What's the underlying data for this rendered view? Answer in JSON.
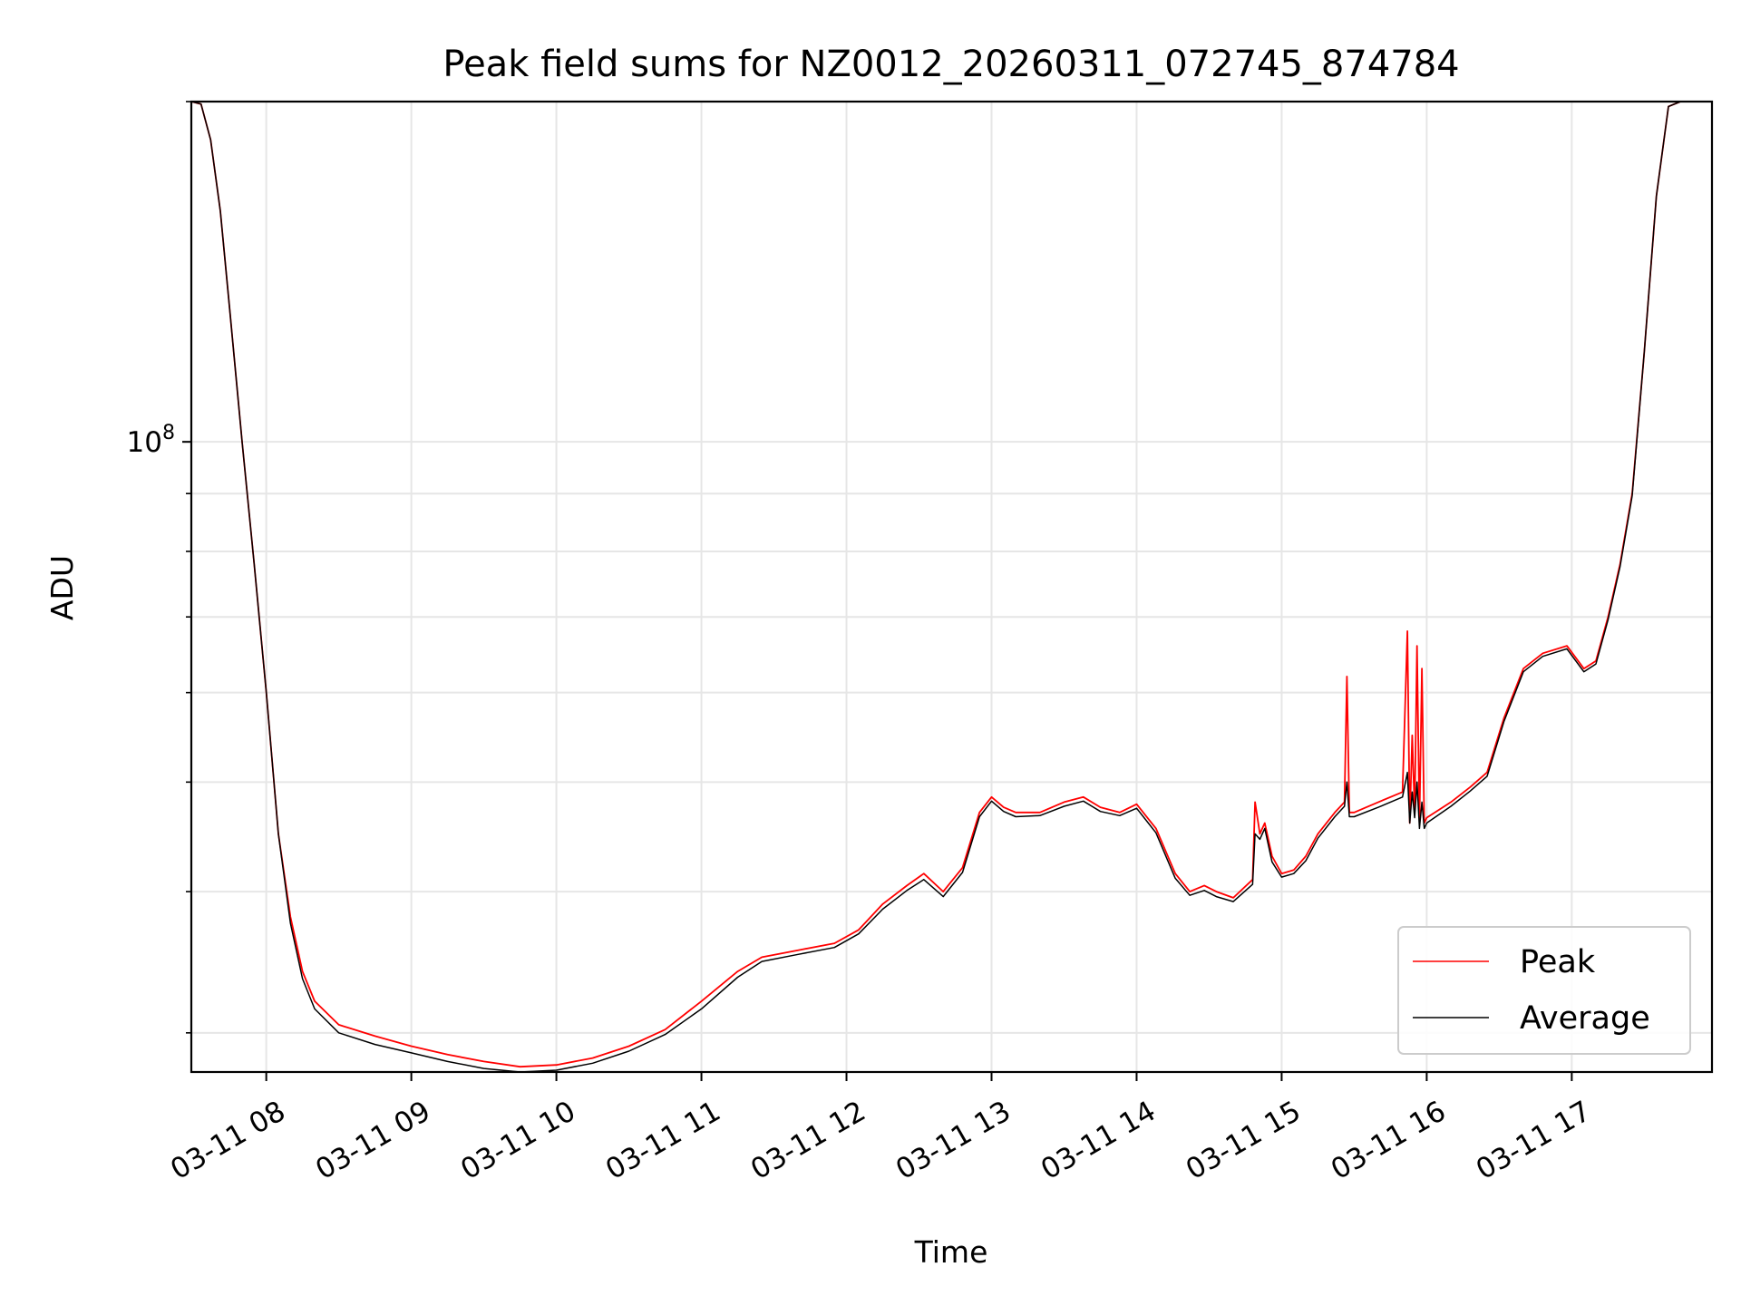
{
  "chart_data": {
    "type": "line",
    "title": "Peak field sums for NZ0012_20260311_072745_874784",
    "xlabel": "Time",
    "ylabel": "ADU",
    "y_scale": "log",
    "ylim": [
      27700000,
      200000000
    ],
    "xlim": [
      "2026-03-11 07:29",
      "2026-03-11 17:58"
    ],
    "x_tick_labels": [
      "03-11 08",
      "03-11 09",
      "03-11 10",
      "03-11 11",
      "03-11 12",
      "03-11 13",
      "03-11 14",
      "03-11 15",
      "03-11 16",
      "03-11 17"
    ],
    "x_ticks": [
      "2026-03-11 08:00",
      "2026-03-11 09:00",
      "2026-03-11 10:00",
      "2026-03-11 11:00",
      "2026-03-11 12:00",
      "2026-03-11 13:00",
      "2026-03-11 14:00",
      "2026-03-11 15:00",
      "2026-03-11 16:00",
      "2026-03-11 17:00"
    ],
    "y_tick_labels": [
      {
        "base": "10",
        "exp": "8"
      }
    ],
    "y_ticks": [
      100000000
    ],
    "y_minor_ticks": [
      30000000,
      40000000,
      50000000,
      60000000,
      70000000,
      80000000,
      90000000,
      200000000
    ],
    "grid": true,
    "legend_position": "lower right",
    "series": [
      {
        "name": "Peak",
        "color": "#ff0000",
        "x": [
          "2026-03-11 07:29",
          "2026-03-11 07:33",
          "2026-03-11 07:37",
          "2026-03-11 07:41",
          "2026-03-11 07:45",
          "2026-03-11 07:50",
          "2026-03-11 07:55",
          "2026-03-11 08:00",
          "2026-03-11 08:05",
          "2026-03-11 08:10",
          "2026-03-11 08:15",
          "2026-03-11 08:20",
          "2026-03-11 08:30",
          "2026-03-11 08:45",
          "2026-03-11 09:00",
          "2026-03-11 09:15",
          "2026-03-11 09:30",
          "2026-03-11 09:45",
          "2026-03-11 10:00",
          "2026-03-11 10:15",
          "2026-03-11 10:30",
          "2026-03-11 10:45",
          "2026-03-11 11:00",
          "2026-03-11 11:15",
          "2026-03-11 11:25",
          "2026-03-11 11:40",
          "2026-03-11 11:55",
          "2026-03-11 12:05",
          "2026-03-11 12:15",
          "2026-03-11 12:25",
          "2026-03-11 12:32",
          "2026-03-11 12:40",
          "2026-03-11 12:48",
          "2026-03-11 12:55",
          "2026-03-11 13:00",
          "2026-03-11 13:05",
          "2026-03-11 13:10",
          "2026-03-11 13:20",
          "2026-03-11 13:30",
          "2026-03-11 13:38",
          "2026-03-11 13:45",
          "2026-03-11 13:53",
          "2026-03-11 14:00",
          "2026-03-11 14:08",
          "2026-03-11 14:16",
          "2026-03-11 14:22",
          "2026-03-11 14:28",
          "2026-03-11 14:33",
          "2026-03-11 14:40",
          "2026-03-11 14:48",
          "2026-03-11 14:49",
          "2026-03-11 14:51",
          "2026-03-11 14:53",
          "2026-03-11 14:56",
          "2026-03-11 15:00",
          "2026-03-11 15:05",
          "2026-03-11 15:10",
          "2026-03-11 15:15",
          "2026-03-11 15:22",
          "2026-03-11 15:26",
          "2026-03-11 15:27",
          "2026-03-11 15:28",
          "2026-03-11 15:30",
          "2026-03-11 15:40",
          "2026-03-11 15:50",
          "2026-03-11 15:52",
          "2026-03-11 15:53",
          "2026-03-11 15:54",
          "2026-03-11 15:55",
          "2026-03-11 15:56",
          "2026-03-11 15:57",
          "2026-03-11 15:58",
          "2026-03-11 15:59",
          "2026-03-11 16:00",
          "2026-03-11 16:10",
          "2026-03-11 16:18",
          "2026-03-11 16:25",
          "2026-03-11 16:32",
          "2026-03-11 16:40",
          "2026-03-11 16:48",
          "2026-03-11 16:58",
          "2026-03-11 17:05",
          "2026-03-11 17:10",
          "2026-03-11 17:15",
          "2026-03-11 17:20",
          "2026-03-11 17:25",
          "2026-03-11 17:30",
          "2026-03-11 17:35",
          "2026-03-11 17:40",
          "2026-03-11 17:45",
          "2026-03-11 17:58"
        ],
        "y": [
          200000000,
          199000000,
          185000000,
          160000000,
          130000000,
          100000000,
          78000000,
          60000000,
          45000000,
          38000000,
          34000000,
          32000000,
          30500000,
          29800000,
          29200000,
          28700000,
          28300000,
          28000000,
          28100000,
          28500000,
          29200000,
          30200000,
          32000000,
          34000000,
          35000000,
          35500000,
          36000000,
          37000000,
          39000000,
          40500000,
          41500000,
          40000000,
          42000000,
          47000000,
          48500000,
          47500000,
          47000000,
          47000000,
          48000000,
          48500000,
          47500000,
          47000000,
          47800000,
          45500000,
          41500000,
          40000000,
          40500000,
          40000000,
          39500000,
          41000000,
          48000000,
          45000000,
          46000000,
          43000000,
          41500000,
          41800000,
          43000000,
          45000000,
          47000000,
          48000000,
          62000000,
          47000000,
          47000000,
          48000000,
          49000000,
          68000000,
          46000000,
          55000000,
          47000000,
          66000000,
          46000000,
          63000000,
          46000000,
          46500000,
          48000000,
          49500000,
          51000000,
          57000000,
          63000000,
          65000000,
          66000000,
          63000000,
          64000000,
          70000000,
          78000000,
          90000000,
          120000000,
          165000000,
          198000000,
          200000000,
          200000000
        ]
      },
      {
        "name": "Average",
        "color": "#000000",
        "x": [
          "2026-03-11 07:29",
          "2026-03-11 07:33",
          "2026-03-11 07:37",
          "2026-03-11 07:41",
          "2026-03-11 07:45",
          "2026-03-11 07:50",
          "2026-03-11 07:55",
          "2026-03-11 08:00",
          "2026-03-11 08:05",
          "2026-03-11 08:10",
          "2026-03-11 08:15",
          "2026-03-11 08:20",
          "2026-03-11 08:30",
          "2026-03-11 08:45",
          "2026-03-11 09:00",
          "2026-03-11 09:15",
          "2026-03-11 09:30",
          "2026-03-11 09:45",
          "2026-03-11 10:00",
          "2026-03-11 10:15",
          "2026-03-11 10:30",
          "2026-03-11 10:45",
          "2026-03-11 11:00",
          "2026-03-11 11:15",
          "2026-03-11 11:25",
          "2026-03-11 11:40",
          "2026-03-11 11:55",
          "2026-03-11 12:05",
          "2026-03-11 12:15",
          "2026-03-11 12:25",
          "2026-03-11 12:32",
          "2026-03-11 12:40",
          "2026-03-11 12:48",
          "2026-03-11 12:55",
          "2026-03-11 13:00",
          "2026-03-11 13:05",
          "2026-03-11 13:10",
          "2026-03-11 13:20",
          "2026-03-11 13:30",
          "2026-03-11 13:38",
          "2026-03-11 13:45",
          "2026-03-11 13:53",
          "2026-03-11 14:00",
          "2026-03-11 14:08",
          "2026-03-11 14:16",
          "2026-03-11 14:22",
          "2026-03-11 14:28",
          "2026-03-11 14:33",
          "2026-03-11 14:40",
          "2026-03-11 14:48",
          "2026-03-11 14:49",
          "2026-03-11 14:51",
          "2026-03-11 14:53",
          "2026-03-11 14:56",
          "2026-03-11 15:00",
          "2026-03-11 15:05",
          "2026-03-11 15:10",
          "2026-03-11 15:15",
          "2026-03-11 15:22",
          "2026-03-11 15:26",
          "2026-03-11 15:27",
          "2026-03-11 15:28",
          "2026-03-11 15:30",
          "2026-03-11 15:40",
          "2026-03-11 15:50",
          "2026-03-11 15:52",
          "2026-03-11 15:53",
          "2026-03-11 15:54",
          "2026-03-11 15:55",
          "2026-03-11 15:56",
          "2026-03-11 15:57",
          "2026-03-11 15:58",
          "2026-03-11 15:59",
          "2026-03-11 16:00",
          "2026-03-11 16:10",
          "2026-03-11 16:18",
          "2026-03-11 16:25",
          "2026-03-11 16:32",
          "2026-03-11 16:40",
          "2026-03-11 16:48",
          "2026-03-11 16:58",
          "2026-03-11 17:05",
          "2026-03-11 17:10",
          "2026-03-11 17:15",
          "2026-03-11 17:20",
          "2026-03-11 17:25",
          "2026-03-11 17:30",
          "2026-03-11 17:35",
          "2026-03-11 17:40",
          "2026-03-11 17:45",
          "2026-03-11 17:58"
        ],
        "y": [
          200000000,
          199000000,
          185000000,
          160000000,
          130000000,
          100000000,
          78000000,
          60000000,
          45000000,
          37500000,
          33500000,
          31500000,
          30000000,
          29300000,
          28800000,
          28300000,
          27900000,
          27700000,
          27800000,
          28200000,
          28900000,
          29900000,
          31500000,
          33600000,
          34700000,
          35200000,
          35700000,
          36700000,
          38600000,
          40100000,
          41000000,
          39600000,
          41600000,
          46600000,
          48100000,
          47100000,
          46600000,
          46700000,
          47600000,
          48100000,
          47100000,
          46700000,
          47400000,
          45100000,
          41100000,
          39700000,
          40100000,
          39600000,
          39200000,
          40600000,
          45000000,
          44500000,
          45500000,
          42500000,
          41200000,
          41500000,
          42600000,
          44600000,
          46600000,
          47600000,
          50000000,
          46600000,
          46600000,
          47500000,
          48500000,
          51000000,
          46000000,
          49000000,
          46500000,
          50000000,
          45500000,
          48000000,
          45500000,
          46000000,
          47600000,
          49100000,
          50600000,
          56600000,
          62600000,
          64600000,
          65600000,
          62600000,
          63600000,
          69600000,
          77600000,
          89600000,
          120000000,
          165000000,
          198000000,
          200000000,
          200000000
        ]
      }
    ]
  }
}
